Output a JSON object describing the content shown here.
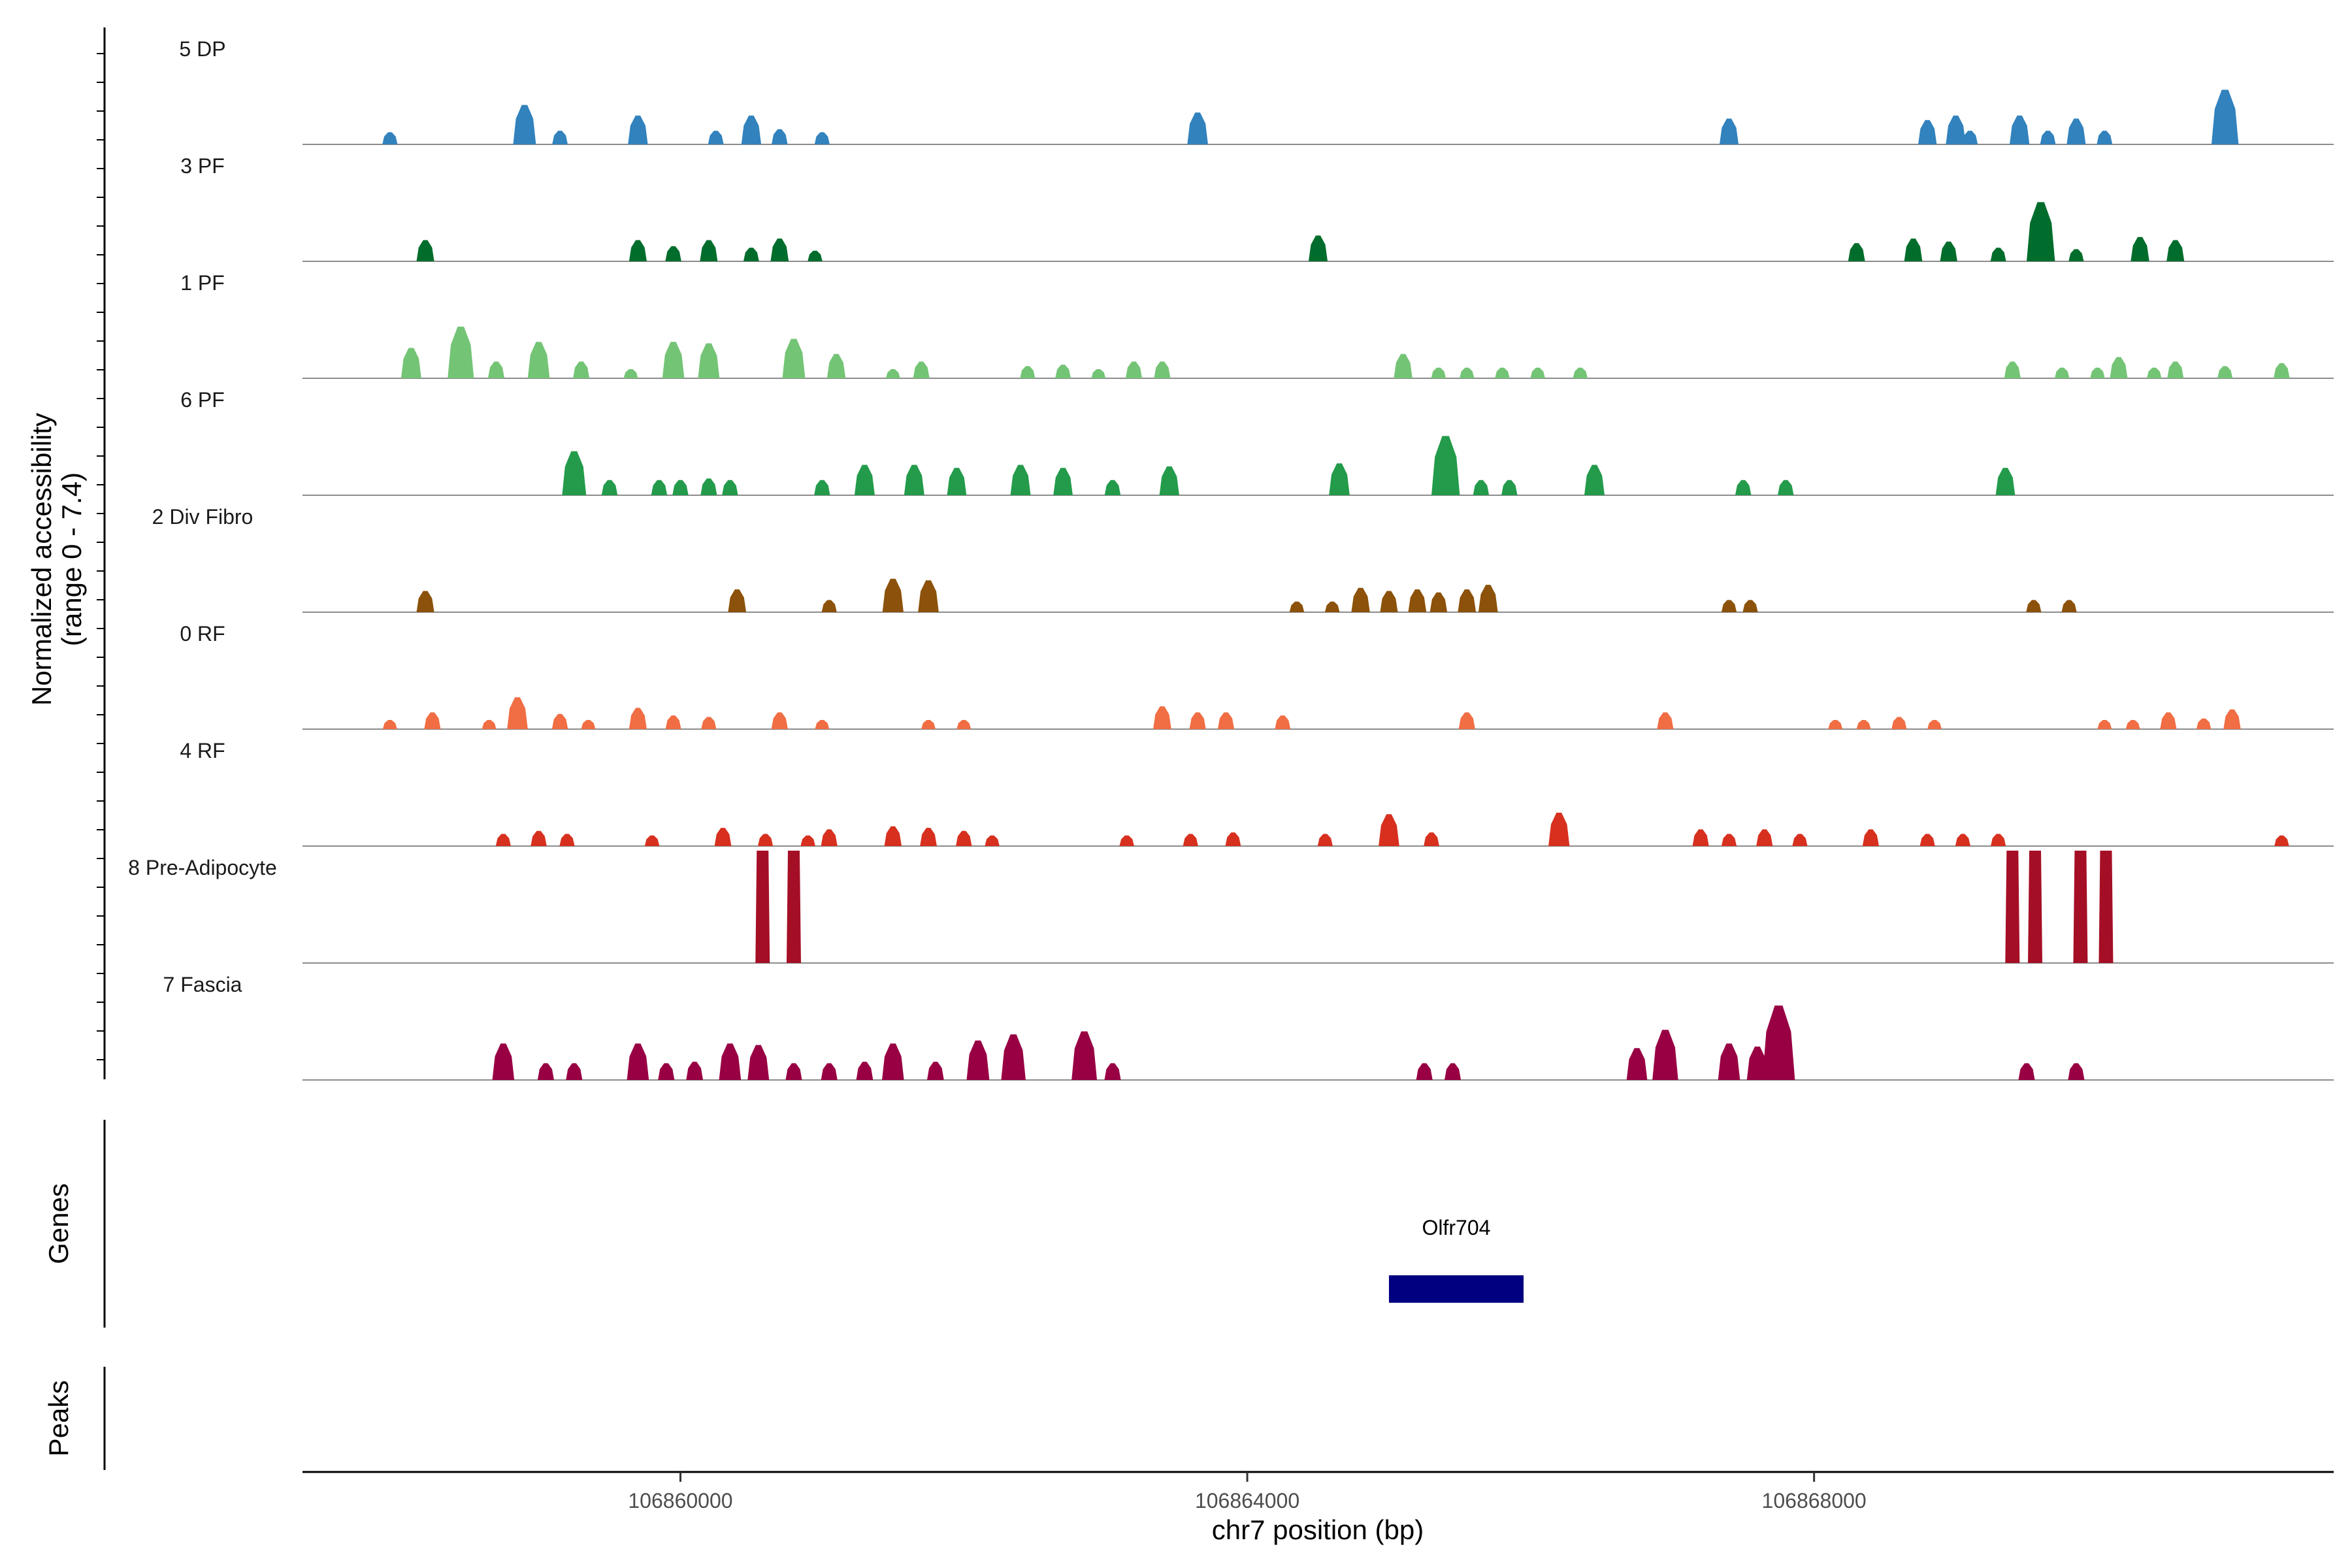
{
  "chart_data": {
    "type": "area",
    "title": "",
    "xlabel": "chr7 position (bp)",
    "ylabel_lines": [
      "Normalized accessibility",
      "(range 0 - 7.4)"
    ],
    "genes_label": "Genes",
    "peaks_label": "Peaks",
    "xlim": [
      106857333,
      106871667
    ],
    "ylim": [
      0,
      7.4
    ],
    "x_ticks": [
      106860000,
      106864000,
      106868000
    ],
    "x_tick_labels": [
      "106860000",
      "106864000",
      "106868000"
    ],
    "genes": [
      {
        "name": "Olfr704",
        "start": 106865000,
        "end": 106865950,
        "color": "#000080"
      }
    ],
    "tracks": [
      {
        "name": "5 DP",
        "color": "#3182bd",
        "peaks": [
          [
            106857950,
            0.8
          ],
          [
            106858900,
            2.6
          ],
          [
            106859150,
            0.9
          ],
          [
            106859700,
            1.9
          ],
          [
            106860250,
            0.9
          ],
          [
            106860500,
            1.9
          ],
          [
            106860700,
            1.0
          ],
          [
            106861000,
            0.8
          ],
          [
            106863650,
            2.1
          ],
          [
            106867400,
            1.7
          ],
          [
            106868800,
            1.6
          ],
          [
            106869000,
            1.9
          ],
          [
            106869100,
            0.9
          ],
          [
            106869450,
            1.9
          ],
          [
            106869650,
            0.9
          ],
          [
            106869850,
            1.7
          ],
          [
            106870050,
            0.9
          ],
          [
            106870900,
            3.6
          ]
        ]
      },
      {
        "name": "3 PF",
        "color": "#006d2c",
        "peaks": [
          [
            106858200,
            1.4
          ],
          [
            106859700,
            1.4
          ],
          [
            106859950,
            1.0
          ],
          [
            106860200,
            1.4
          ],
          [
            106860500,
            0.9
          ],
          [
            106860700,
            1.5
          ],
          [
            106860950,
            0.7
          ],
          [
            106864500,
            1.7
          ],
          [
            106868300,
            1.2
          ],
          [
            106868700,
            1.5
          ],
          [
            106868950,
            1.3
          ],
          [
            106869300,
            0.9
          ],
          [
            106869600,
            3.9
          ],
          [
            106869850,
            0.8
          ],
          [
            106870300,
            1.6
          ],
          [
            106870550,
            1.4
          ]
        ]
      },
      {
        "name": "1 PF",
        "color": "#74c476",
        "peaks": [
          [
            106858100,
            2.0
          ],
          [
            106858450,
            3.4
          ],
          [
            106858700,
            1.1
          ],
          [
            106859000,
            2.4
          ],
          [
            106859300,
            1.1
          ],
          [
            106859650,
            0.6
          ],
          [
            106859950,
            2.4
          ],
          [
            106860200,
            2.3
          ],
          [
            106860800,
            2.6
          ],
          [
            106861100,
            1.6
          ],
          [
            106861500,
            0.6
          ],
          [
            106861700,
            1.1
          ],
          [
            106862450,
            0.8
          ],
          [
            106862700,
            0.9
          ],
          [
            106862950,
            0.6
          ],
          [
            106863200,
            1.1
          ],
          [
            106863400,
            1.1
          ],
          [
            106865100,
            1.6
          ],
          [
            106865350,
            0.7
          ],
          [
            106865550,
            0.7
          ],
          [
            106865800,
            0.7
          ],
          [
            106866050,
            0.7
          ],
          [
            106866350,
            0.7
          ],
          [
            106869400,
            1.1
          ],
          [
            106869750,
            0.7
          ],
          [
            106870000,
            0.7
          ],
          [
            106870150,
            1.4
          ],
          [
            106870400,
            0.7
          ],
          [
            106870550,
            1.1
          ],
          [
            106870900,
            0.8
          ],
          [
            106871300,
            1.0
          ]
        ]
      },
      {
        "name": "6 PF",
        "color": "#239b4b",
        "peaks": [
          [
            106859250,
            2.9
          ],
          [
            106859500,
            1.0
          ],
          [
            106859850,
            1.0
          ],
          [
            106860000,
            1.0
          ],
          [
            106860200,
            1.1
          ],
          [
            106860350,
            1.0
          ],
          [
            106861000,
            1.0
          ],
          [
            106861300,
            2.0
          ],
          [
            106861650,
            2.0
          ],
          [
            106861950,
            1.8
          ],
          [
            106862400,
            2.0
          ],
          [
            106862700,
            1.8
          ],
          [
            106863050,
            1.0
          ],
          [
            106863450,
            1.9
          ],
          [
            106864650,
            2.1
          ],
          [
            106865400,
            3.9
          ],
          [
            106865650,
            1.0
          ],
          [
            106865850,
            1.0
          ],
          [
            106866450,
            2.0
          ],
          [
            106867500,
            1.0
          ],
          [
            106867800,
            1.0
          ],
          [
            106869350,
            1.8
          ]
        ]
      },
      {
        "name": "2 Div Fibro",
        "color": "#8c510a",
        "peaks": [
          [
            106858200,
            1.4
          ],
          [
            106860400,
            1.5
          ],
          [
            106861050,
            0.8
          ],
          [
            106861500,
            2.2
          ],
          [
            106861750,
            2.1
          ],
          [
            106864350,
            0.7
          ],
          [
            106864600,
            0.7
          ],
          [
            106864800,
            1.6
          ],
          [
            106865000,
            1.4
          ],
          [
            106865200,
            1.5
          ],
          [
            106865350,
            1.3
          ],
          [
            106865550,
            1.5
          ],
          [
            106865700,
            1.8
          ],
          [
            106867400,
            0.8
          ],
          [
            106867550,
            0.8
          ],
          [
            106869550,
            0.8
          ],
          [
            106869800,
            0.8
          ]
        ]
      },
      {
        "name": "0 RF",
        "color": "#f16d43",
        "peaks": [
          [
            106857950,
            0.6
          ],
          [
            106858250,
            1.1
          ],
          [
            106858650,
            0.6
          ],
          [
            106858850,
            2.1
          ],
          [
            106859150,
            1.0
          ],
          [
            106859350,
            0.6
          ],
          [
            106859700,
            1.4
          ],
          [
            106859950,
            0.9
          ],
          [
            106860200,
            0.8
          ],
          [
            106860700,
            1.1
          ],
          [
            106861000,
            0.6
          ],
          [
            106861750,
            0.6
          ],
          [
            106862000,
            0.6
          ],
          [
            106863400,
            1.5
          ],
          [
            106863650,
            1.1
          ],
          [
            106863850,
            1.1
          ],
          [
            106864250,
            0.9
          ],
          [
            106865550,
            1.1
          ],
          [
            106866950,
            1.1
          ],
          [
            106868150,
            0.6
          ],
          [
            106868350,
            0.6
          ],
          [
            106868600,
            0.8
          ],
          [
            106868850,
            0.6
          ],
          [
            106870050,
            0.6
          ],
          [
            106870250,
            0.6
          ],
          [
            106870500,
            1.1
          ],
          [
            106870750,
            0.7
          ],
          [
            106870950,
            1.3
          ]
        ]
      },
      {
        "name": "4 RF",
        "color": "#d7301f",
        "peaks": [
          [
            106858750,
            0.8
          ],
          [
            106859000,
            1.0
          ],
          [
            106859200,
            0.8
          ],
          [
            106859800,
            0.7
          ],
          [
            106860300,
            1.2
          ],
          [
            106860600,
            0.8
          ],
          [
            106860900,
            0.7
          ],
          [
            106861050,
            1.1
          ],
          [
            106861500,
            1.3
          ],
          [
            106861750,
            1.2
          ],
          [
            106862000,
            1.0
          ],
          [
            106862200,
            0.7
          ],
          [
            106863150,
            0.7
          ],
          [
            106863600,
            0.8
          ],
          [
            106863900,
            0.9
          ],
          [
            106864550,
            0.8
          ],
          [
            106865000,
            2.1
          ],
          [
            106865300,
            0.9
          ],
          [
            106866200,
            2.2
          ],
          [
            106867200,
            1.1
          ],
          [
            106867400,
            0.8
          ],
          [
            106867650,
            1.1
          ],
          [
            106867900,
            0.8
          ],
          [
            106868400,
            1.1
          ],
          [
            106868800,
            0.8
          ],
          [
            106869050,
            0.8
          ],
          [
            106869300,
            0.8
          ],
          [
            106871300,
            0.7
          ]
        ]
      },
      {
        "name": "8 Pre-Adipocyte",
        "color": "#a50f26",
        "peaks": [
          [
            106860580,
            7.4
          ],
          [
            106860800,
            7.4
          ],
          [
            106869400,
            7.4
          ],
          [
            106869560,
            7.4
          ],
          [
            106869880,
            7.4
          ],
          [
            106870060,
            7.4
          ]
        ]
      },
      {
        "name": "7 Fascia",
        "color": "#980043",
        "peaks": [
          [
            106858750,
            2.4
          ],
          [
            106859050,
            1.1
          ],
          [
            106859250,
            1.1
          ],
          [
            106859700,
            2.4
          ],
          [
            106859900,
            1.1
          ],
          [
            106860100,
            1.2
          ],
          [
            106860350,
            2.4
          ],
          [
            106860550,
            2.3
          ],
          [
            106860800,
            1.1
          ],
          [
            106861050,
            1.1
          ],
          [
            106861300,
            1.2
          ],
          [
            106861500,
            2.4
          ],
          [
            106861800,
            1.2
          ],
          [
            106862100,
            2.6
          ],
          [
            106862350,
            3.0
          ],
          [
            106862850,
            3.2
          ],
          [
            106863050,
            1.1
          ],
          [
            106865250,
            1.1
          ],
          [
            106865450,
            1.1
          ],
          [
            106866750,
            2.1
          ],
          [
            106866950,
            3.3
          ],
          [
            106867400,
            2.4
          ],
          [
            106867600,
            2.2
          ],
          [
            106867750,
            4.9
          ],
          [
            106869500,
            1.1
          ],
          [
            106869850,
            1.1
          ]
        ]
      }
    ]
  }
}
